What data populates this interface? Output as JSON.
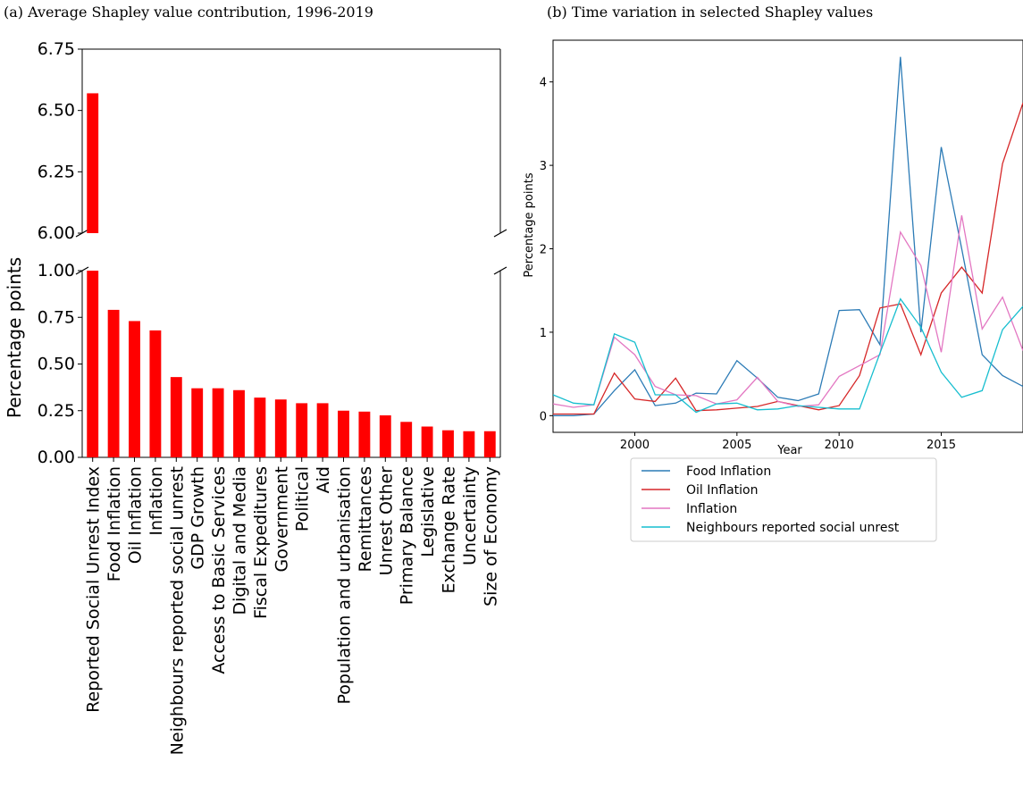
{
  "chart_data": [
    {
      "type": "bar",
      "title": "(a) Average Shapley value contribution, 1996-2019",
      "ylabel": "Percentage points",
      "broken_axis": true,
      "ylim_lower": [
        0,
        1.0
      ],
      "ylim_upper": [
        6.0,
        6.75
      ],
      "yticks_lower": [
        "0.00",
        "0.25",
        "0.50",
        "0.75",
        "1.00"
      ],
      "yticks_upper": [
        "6.00",
        "6.25",
        "6.50",
        "6.75"
      ],
      "bar_color": "#ff0000",
      "categories": [
        "Reported Social Unrest Index",
        "Food Inflation",
        "Oil Inflation",
        "Inflation",
        "Neighbours reported social unrest",
        "GDP Growth",
        "Access to Basic Services",
        "Digital and Media",
        "Fiscal Expeditures",
        "Government",
        "Political",
        "Aid",
        "Population and urbanisation",
        "Remittances",
        "Unrest Other",
        "Primary Balance",
        "Legislative",
        "Exchange Rate",
        "Uncertainty",
        "Size of Economy"
      ],
      "values": [
        6.57,
        0.79,
        0.73,
        0.68,
        0.43,
        0.37,
        0.37,
        0.36,
        0.32,
        0.31,
        0.29,
        0.29,
        0.25,
        0.245,
        0.225,
        0.19,
        0.165,
        0.145,
        0.14,
        0.14
      ]
    },
    {
      "type": "line",
      "title": "(b) Time variation in selected Shapley values",
      "xlabel": "Year",
      "ylabel": "Percentage points",
      "xlim": [
        1996,
        2019
      ],
      "ylim": [
        -0.2,
        4.5
      ],
      "xticks": [
        "2000",
        "2005",
        "2010",
        "2015"
      ],
      "yticks": [
        "0",
        "1",
        "2",
        "3",
        "4"
      ],
      "legend_position": "below",
      "x": [
        1996,
        1997,
        1998,
        1999,
        2000,
        2001,
        2002,
        2003,
        2004,
        2005,
        2006,
        2007,
        2008,
        2009,
        2010,
        2011,
        2012,
        2013,
        2014,
        2015,
        2016,
        2017,
        2018,
        2019
      ],
      "series": [
        {
          "name": "Food Inflation",
          "color": "#2c7bb6",
          "values": [
            0.0,
            0.0,
            0.02,
            0.3,
            0.55,
            0.12,
            0.15,
            0.27,
            0.26,
            0.66,
            0.45,
            0.22,
            0.18,
            0.26,
            1.26,
            1.27,
            0.85,
            4.3,
            1.0,
            3.22,
            2.0,
            0.73,
            0.48,
            0.35
          ]
        },
        {
          "name": "Oil Inflation",
          "color": "#d62728",
          "values": [
            0.02,
            0.02,
            0.02,
            0.51,
            0.2,
            0.17,
            0.45,
            0.06,
            0.07,
            0.09,
            0.11,
            0.17,
            0.12,
            0.07,
            0.12,
            0.48,
            1.29,
            1.34,
            0.73,
            1.47,
            1.78,
            1.47,
            3.02,
            3.75
          ]
        },
        {
          "name": "Inflation",
          "color": "#e377c2",
          "values": [
            0.14,
            0.1,
            0.13,
            0.94,
            0.73,
            0.35,
            0.25,
            0.24,
            0.14,
            0.19,
            0.46,
            0.17,
            0.11,
            0.13,
            0.47,
            0.6,
            0.73,
            2.2,
            1.8,
            0.76,
            2.4,
            1.04,
            1.42,
            0.78
          ]
        },
        {
          "name": "Neighbours reported social unrest",
          "color": "#17becf",
          "values": [
            0.25,
            0.15,
            0.13,
            0.98,
            0.88,
            0.25,
            0.25,
            0.04,
            0.14,
            0.15,
            0.07,
            0.08,
            0.12,
            0.1,
            0.08,
            0.08,
            0.75,
            1.4,
            1.06,
            0.52,
            0.22,
            0.3,
            1.03,
            1.31
          ]
        }
      ]
    }
  ]
}
